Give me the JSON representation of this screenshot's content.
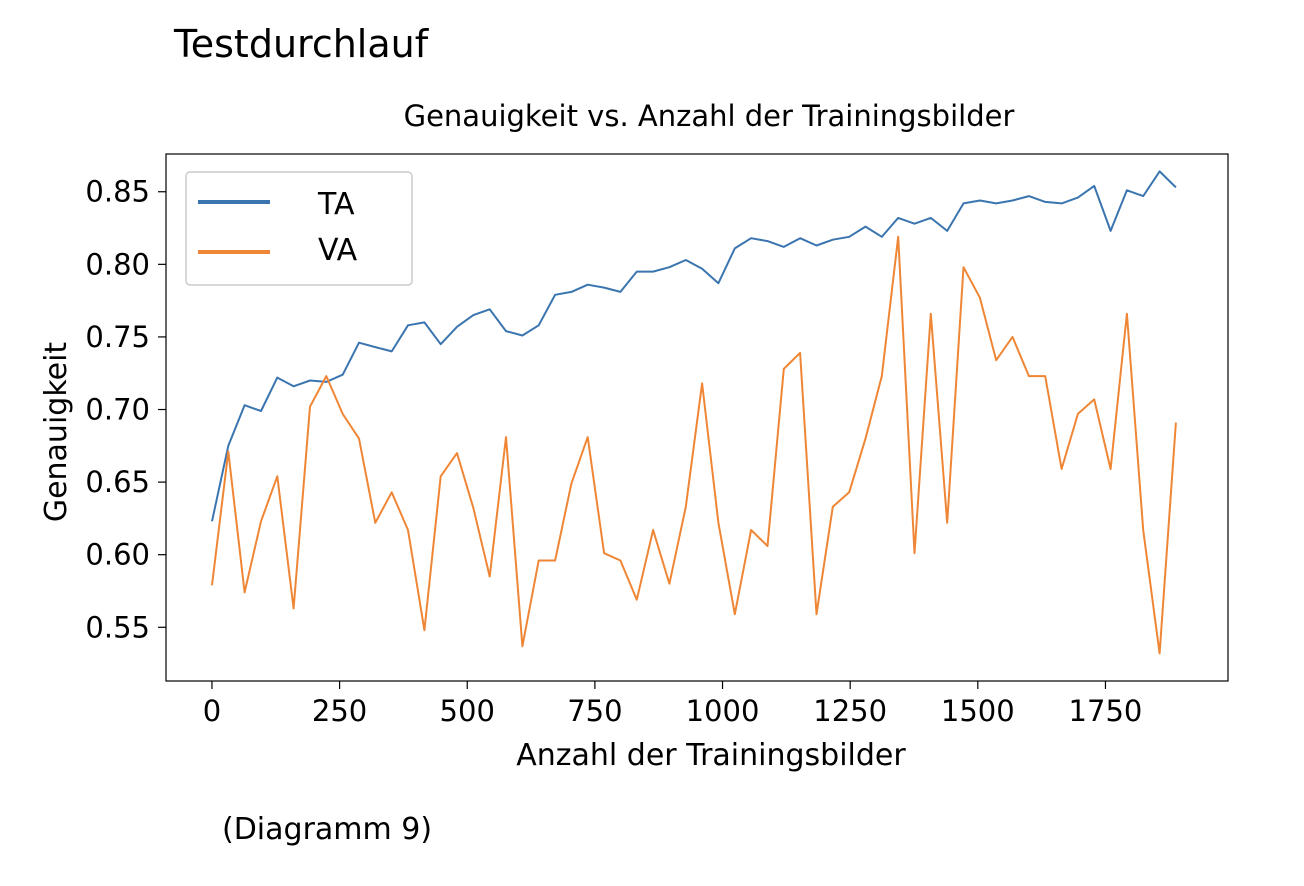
{
  "page": {
    "heading": "Testdurchlauf",
    "caption": "(Diagramm 9)"
  },
  "chart_data": {
    "type": "line",
    "title": "Genauigkeit vs. Anzahl der Trainingsbilder",
    "xlabel": "Anzahl der Trainingsbilder",
    "ylabel": "Genauigkeit",
    "xlim": [
      -90,
      1990
    ],
    "ylim": [
      0.513,
      0.876
    ],
    "xticks": [
      0,
      250,
      500,
      750,
      1000,
      1250,
      1500,
      1750
    ],
    "yticks": [
      0.55,
      0.6,
      0.65,
      0.7,
      0.75,
      0.8,
      0.85
    ],
    "grid": false,
    "legend_position": "top-left",
    "x": [
      0,
      32,
      64,
      96,
      128,
      160,
      192,
      224,
      256,
      288,
      320,
      352,
      384,
      416,
      448,
      480,
      512,
      544,
      576,
      608,
      640,
      672,
      704,
      736,
      768,
      800,
      832,
      864,
      896,
      928,
      960,
      992,
      1024,
      1056,
      1088,
      1120,
      1152,
      1184,
      1216,
      1248,
      1280,
      1312,
      1344,
      1376,
      1408,
      1440,
      1472,
      1504,
      1536,
      1568,
      1600,
      1632,
      1664,
      1696,
      1728,
      1760,
      1792,
      1824,
      1856,
      1888
    ],
    "series": [
      {
        "name": "TA",
        "color": "#3b75af",
        "values": [
          0.623,
          0.675,
          0.703,
          0.699,
          0.722,
          0.716,
          0.72,
          0.719,
          0.724,
          0.746,
          0.743,
          0.74,
          0.758,
          0.76,
          0.745,
          0.757,
          0.765,
          0.769,
          0.754,
          0.751,
          0.758,
          0.779,
          0.781,
          0.786,
          0.784,
          0.781,
          0.795,
          0.795,
          0.798,
          0.803,
          0.797,
          0.787,
          0.811,
          0.818,
          0.816,
          0.812,
          0.818,
          0.813,
          0.817,
          0.819,
          0.826,
          0.819,
          0.832,
          0.828,
          0.832,
          0.823,
          0.842,
          0.844,
          0.842,
          0.844,
          0.847,
          0.843,
          0.842,
          0.846,
          0.854,
          0.823,
          0.851,
          0.847,
          0.864,
          0.853
        ]
      },
      {
        "name": "VA",
        "color": "#ef8636",
        "values": [
          0.579,
          0.671,
          0.574,
          0.623,
          0.654,
          0.563,
          0.702,
          0.723,
          0.697,
          0.68,
          0.622,
          0.643,
          0.617,
          0.548,
          0.654,
          0.67,
          0.632,
          0.585,
          0.681,
          0.537,
          0.596,
          0.596,
          0.649,
          0.681,
          0.601,
          0.596,
          0.569,
          0.617,
          0.58,
          0.633,
          0.718,
          0.622,
          0.559,
          0.617,
          0.606,
          0.728,
          0.739,
          0.559,
          0.633,
          0.643,
          0.68,
          0.723,
          0.819,
          0.601,
          0.766,
          0.622,
          0.798,
          0.777,
          0.734,
          0.75,
          0.723,
          0.723,
          0.659,
          0.697,
          0.707,
          0.659,
          0.766,
          0.617,
          0.532,
          0.691
        ]
      }
    ]
  }
}
